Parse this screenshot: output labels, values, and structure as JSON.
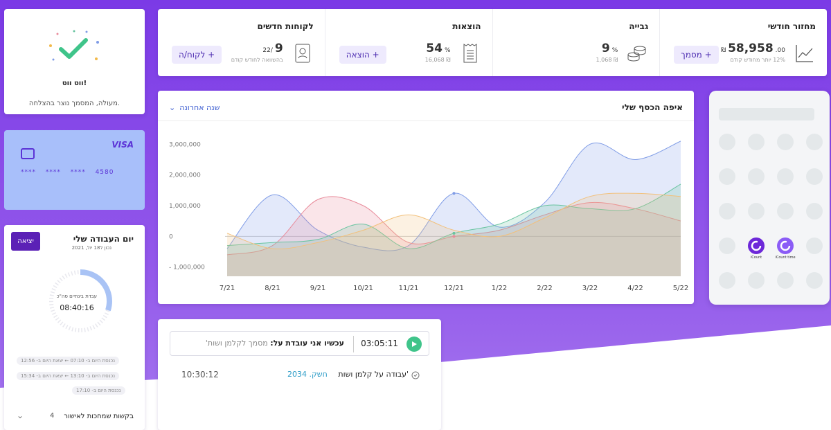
{
  "stats": [
    {
      "title": "מחזור חודשי",
      "value": "58,958",
      "decimals": ".00",
      "unit": "₪",
      "sub": "12% יותר מחודש קודם",
      "button": "+ מסמך"
    },
    {
      "title": "גבייה",
      "value": "9",
      "unit": "%",
      "sub": "₪ 1,068"
    },
    {
      "title": "הוצאות",
      "value": "54",
      "unit": "%",
      "sub": "₪ 16,068",
      "button": "+ הוצאה"
    },
    {
      "title": "לקוחות חדשים",
      "value": "9",
      "prefix": "22/",
      "sub": "בהשוואה לחודש קודם",
      "button": "+ לקוח/ה"
    }
  ],
  "success": {
    "title": "ווט ווט!",
    "message": "מעולה, המסמך נוצר בהצלחה."
  },
  "card": {
    "brand": "VISA",
    "number": "**** **** **** 4580"
  },
  "workday": {
    "title": "יום העבודה שלי",
    "date": "נכון ל18 יול, 2021",
    "exit_label": "יציאה",
    "gauge_label": "עבדת בינתיים סה\"כ",
    "gauge_time": "08:40:16",
    "gauge_progress": 0.3,
    "logs": [
      "נכנסת היום ב- 07:10 ← יצאת היום ב- 12:56",
      "נכנסת היום ב- 13:10 ← יצאת היום ב- 15:34",
      "נכנסת היום ב- 17:10"
    ],
    "requests_label": "בקשות שמחכות לאישור",
    "requests_count": "4"
  },
  "chart_header": {
    "title": "איפה הכסף שלי",
    "filter": "שנה אחרונה"
  },
  "chart_data": {
    "type": "area",
    "x": [
      "7/21",
      "8/21",
      "9/21",
      "10/21",
      "11/21",
      "12/21",
      "1/22",
      "2/22",
      "3/22",
      "4/22",
      "5/22"
    ],
    "y_ticks": [
      "3,000,000",
      "2,000,000",
      "1,000,000",
      "0",
      "- 1,000,000"
    ],
    "ylim": [
      -1300000,
      3300000
    ],
    "series": [
      {
        "color": "#7f9ce6",
        "values": [
          -400000,
          1350000,
          200000,
          -350000,
          -300000,
          1400000,
          300000,
          1100000,
          3000000,
          2500000,
          3100000
        ]
      },
      {
        "color": "#e88a9a",
        "values": [
          -600000,
          -300000,
          1200000,
          1000000,
          -200000,
          0,
          200000,
          700000,
          1100000,
          900000,
          500000
        ]
      },
      {
        "color": "#69c4a0",
        "values": [
          -300000,
          -200000,
          -100000,
          400000,
          -400000,
          100000,
          400000,
          1000000,
          900000,
          900000,
          1700000
        ]
      },
      {
        "color": "#f2c07a",
        "values": [
          100000,
          -400000,
          -200000,
          200000,
          700000,
          200000,
          0,
          600000,
          1300000,
          1400000,
          1300000
        ]
      }
    ],
    "markers": [
      {
        "series": 0,
        "index": 5
      },
      {
        "series": 1,
        "index": 5
      },
      {
        "series": 2,
        "index": 5
      }
    ]
  },
  "phone": {
    "apps": [
      {
        "label": "iCount",
        "color": "#6d28d9"
      },
      {
        "label": "iCount time",
        "color": "#8b5cf6"
      }
    ]
  },
  "timer": {
    "time": "03:05:11",
    "label_strong": "עכשיו אני עובדת על:",
    "label_rest": " מסמך לקלמן ושות'",
    "entry_title": "עבודה על קלמן ושות'",
    "entry_ref": "חשק. 2034",
    "entry_time": "10:30:12"
  }
}
